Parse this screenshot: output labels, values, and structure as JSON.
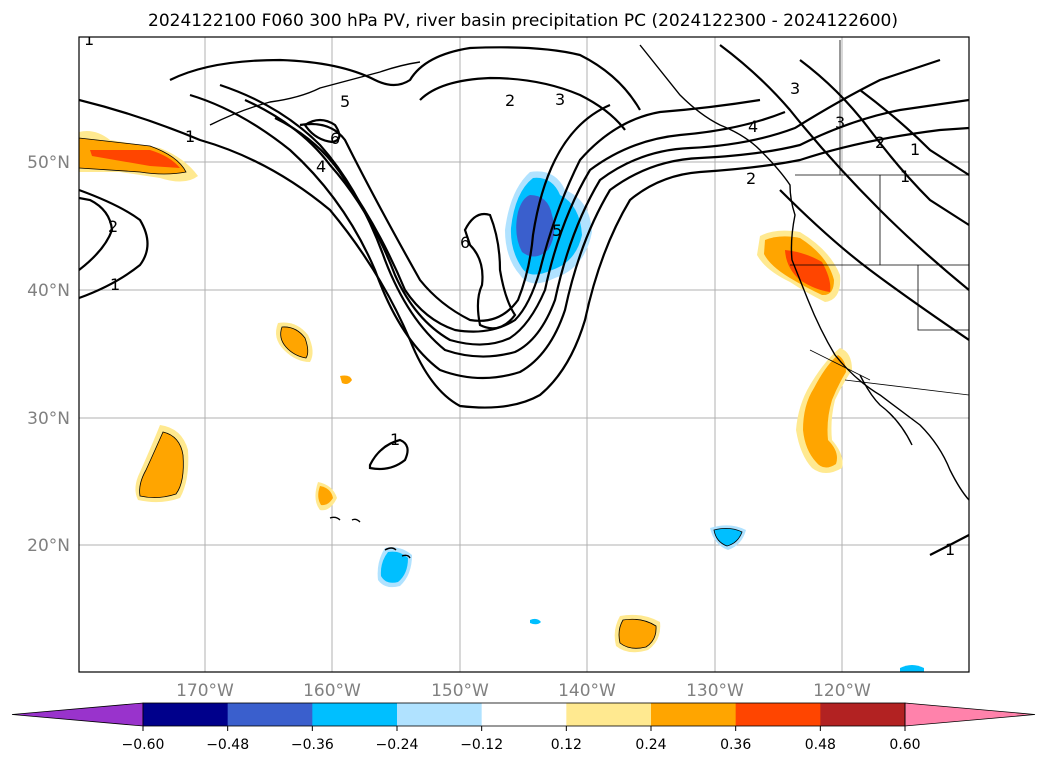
{
  "title": "2024122100 F060 300 hPa PV, river basin precipitation PC (2024122300 - 2024122600)",
  "lat_labels": [
    "50°N",
    "40°N",
    "30°N",
    "20°N"
  ],
  "lon_labels": [
    "170°W",
    "160°W",
    "150°W",
    "140°W",
    "130°W",
    "120°W"
  ],
  "colorbar": {
    "ticks": [
      "−0.60",
      "−0.48",
      "−0.36",
      "−0.24",
      "−0.12",
      "0.12",
      "0.24",
      "0.36",
      "0.48",
      "0.60"
    ],
    "colors": [
      "#9933cc",
      "#00008b",
      "#3a5fcd",
      "#00bfff",
      "#b0e2ff",
      "#ffffff",
      "#ffe990",
      "#ffa500",
      "#ff4500",
      "#b22222",
      "#ff82ab"
    ]
  },
  "pv_contour_labels": [
    "1",
    "2",
    "3",
    "4",
    "5",
    "6",
    "2",
    "1",
    "1",
    "5",
    "4",
    "3",
    "2",
    "1",
    "3",
    "2",
    "1",
    "1",
    "6",
    "1"
  ]
}
